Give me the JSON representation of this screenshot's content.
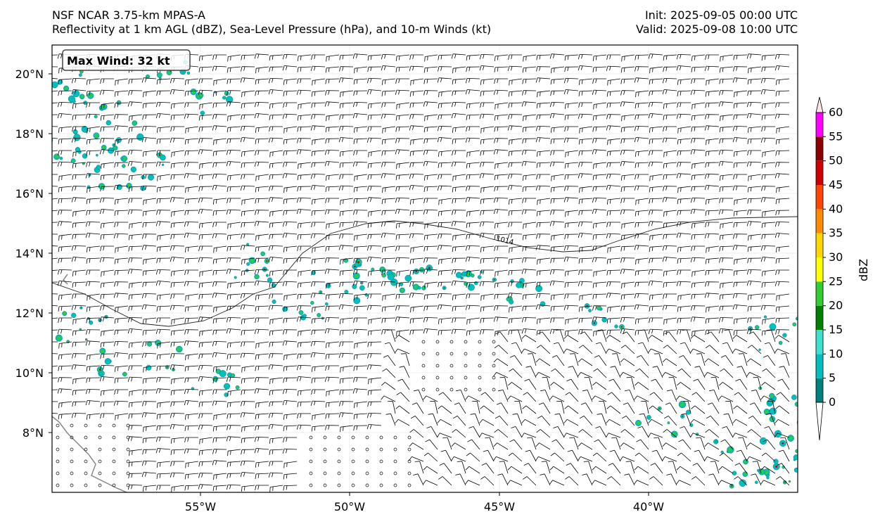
{
  "header": {
    "model": "NSF NCAR 3.75-km MPAS-A",
    "fields": "Reflectivity at 1 km AGL (dBZ), Sea-Level Pressure (hPa), and 10-m Winds (kt)",
    "init": "Init: 2025-09-05 00:00 UTC",
    "valid": "Valid: 2025-09-08 10:00 UTC"
  },
  "annotation": {
    "max_wind": "Max Wind: 32 kt"
  },
  "axes": {
    "lon_ticks": [
      "55°W",
      "50°W",
      "45°W",
      "40°W"
    ],
    "lat_ticks": [
      "20°N",
      "18°N",
      "16°N",
      "14°N",
      "12°N",
      "10°N",
      "8°N"
    ]
  },
  "isobar": {
    "label": "1014"
  },
  "colorbar": {
    "label": "dBZ",
    "ticks": [
      "0",
      "5",
      "10",
      "15",
      "20",
      "25",
      "30",
      "35",
      "40",
      "45",
      "50",
      "55",
      "60"
    ],
    "colors": [
      "#007f7f",
      "#00bfbf",
      "#40e0d0",
      "#008000",
      "#32cd32",
      "#ffff00",
      "#ffd700",
      "#ff8c00",
      "#ff4500",
      "#cc0000",
      "#8b0000",
      "#ff00ff",
      "#ffe4e1"
    ]
  }
}
